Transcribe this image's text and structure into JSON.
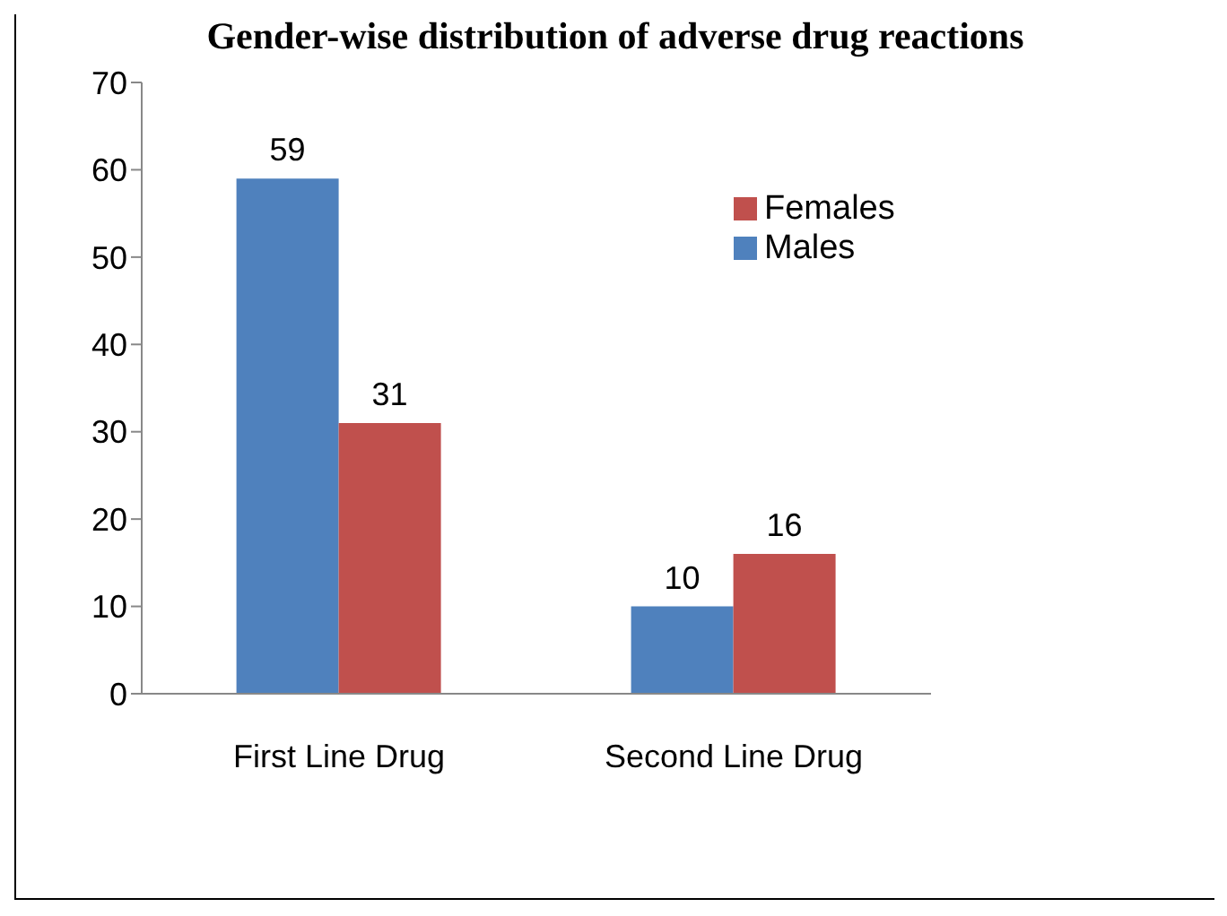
{
  "chart_data": {
    "type": "bar",
    "title": "Gender-wise distribution of adverse drug reactions",
    "categories": [
      "First Line Drug",
      "Second Line Drug"
    ],
    "series": [
      {
        "name": "Males",
        "color": "#4f81bd",
        "values": [
          59,
          10
        ]
      },
      {
        "name": "Females",
        "color": "#c0504d",
        "values": [
          31,
          16
        ]
      }
    ],
    "ylim": [
      0,
      70
    ],
    "yticks": [
      0,
      10,
      20,
      30,
      40,
      50,
      60,
      70
    ],
    "grid": false,
    "legend": "top right",
    "data_labels": true
  }
}
